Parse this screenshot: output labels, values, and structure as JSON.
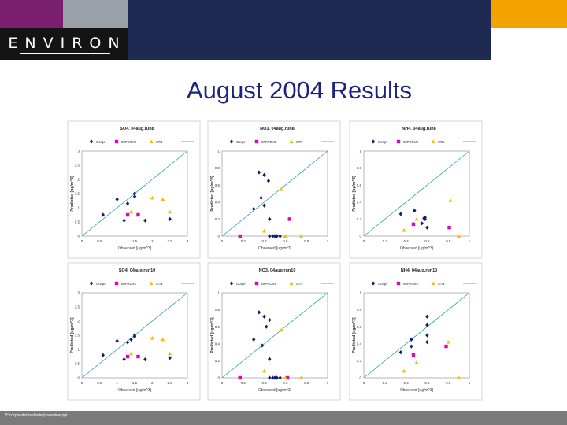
{
  "header": {
    "logo_text": "ENVIRON"
  },
  "slide": {
    "title": "August 2004 Results"
  },
  "footer": {
    "path": "V:\\corporate\\marketing\\overview.ppt"
  },
  "colors": {
    "series": [
      "#1a1a6e",
      "#e000c8",
      "#f0c000"
    ],
    "line": "#2aa198"
  },
  "chart_data": [
    {
      "type": "scatter",
      "title": "SO4.  04aug.run8",
      "xlabel": "Observed [ug/m^3]",
      "ylabel": "Predicted [ug/m^3]",
      "xlim": [
        0,
        3
      ],
      "ylim": [
        0,
        3
      ],
      "xticks": [
        "0",
        "0.5",
        "1",
        "1.5",
        "2",
        "2.5",
        "3"
      ],
      "yticks": [
        "0",
        "0.5",
        "1",
        "1.5",
        "2",
        "2.5",
        "3"
      ],
      "legend": [
        "Gorge",
        "IMPROVE",
        "STN"
      ],
      "series": [
        {
          "name": "Gorge",
          "marker": "diamond",
          "points": [
            [
              0.6,
              0.75
            ],
            [
              1.0,
              1.3
            ],
            [
              1.2,
              0.55
            ],
            [
              1.3,
              1.15
            ],
            [
              1.5,
              1.4
            ],
            [
              1.5,
              1.5
            ],
            [
              1.8,
              0.55
            ],
            [
              2.5,
              0.6
            ]
          ]
        },
        {
          "name": "IMPROVE",
          "marker": "square",
          "points": [
            [
              1.3,
              0.75
            ],
            [
              1.6,
              0.75
            ]
          ]
        },
        {
          "name": "STN",
          "marker": "triangle",
          "points": [
            [
              1.4,
              0.85
            ],
            [
              2.0,
              1.35
            ],
            [
              2.3,
              1.3
            ],
            [
              2.5,
              0.85
            ]
          ]
        }
      ]
    },
    {
      "type": "scatter",
      "title": "NO3.  04aug.run8",
      "xlabel": "Observed [ug/m^3]",
      "ylabel": "Predicted [ug/m^3]",
      "xlim": [
        0,
        1
      ],
      "ylim": [
        0,
        1
      ],
      "xticks": [
        "0",
        "0.2",
        "0.4",
        "0.6",
        "0.8",
        "1"
      ],
      "yticks": [
        "0",
        "0.2",
        "0.4",
        "0.6",
        "0.8",
        "1"
      ],
      "legend": [
        "Gorge",
        "IMPROVE",
        "STN"
      ],
      "series": [
        {
          "name": "Gorge",
          "marker": "diamond",
          "points": [
            [
              0.3,
              0.32
            ],
            [
              0.35,
              0.75
            ],
            [
              0.4,
              0.72
            ],
            [
              0.37,
              0.45
            ],
            [
              0.4,
              0.36
            ],
            [
              0.44,
              0.65
            ],
            [
              0.45,
              0.2
            ],
            [
              0.45,
              0.0
            ],
            [
              0.48,
              0.0
            ],
            [
              0.5,
              0.0
            ],
            [
              0.52,
              0.0
            ],
            [
              0.55,
              0.0
            ]
          ]
        },
        {
          "name": "IMPROVE",
          "marker": "square",
          "points": [
            [
              0.17,
              0.0
            ],
            [
              0.64,
              0.2
            ]
          ]
        },
        {
          "name": "STN",
          "marker": "triangle",
          "points": [
            [
              0.4,
              0.06
            ],
            [
              0.56,
              0.55
            ],
            [
              0.6,
              0.0
            ],
            [
              0.75,
              0.0
            ]
          ]
        }
      ]
    },
    {
      "type": "scatter",
      "title": "NH4.  04aug.run8",
      "xlabel": "Observed [ug/m^3]",
      "ylabel": "Predicted [ug/m^3]",
      "xlim": [
        0,
        1
      ],
      "ylim": [
        0,
        1
      ],
      "xticks": [
        "0",
        "0.2",
        "0.4",
        "0.6",
        "0.8",
        "1"
      ],
      "yticks": [
        "0",
        "0.2",
        "0.4",
        "0.6",
        "0.8",
        "1"
      ],
      "legend": [
        "Gorge",
        "IMPROVE",
        "STN"
      ],
      "series": [
        {
          "name": "Gorge",
          "marker": "diamond",
          "points": [
            [
              0.35,
              0.26
            ],
            [
              0.48,
              0.3
            ],
            [
              0.57,
              0.21
            ],
            [
              0.58,
              0.2
            ],
            [
              0.58,
              0.22
            ],
            [
              0.55,
              0.15
            ],
            [
              0.6,
              0.1
            ]
          ]
        },
        {
          "name": "IMPROVE",
          "marker": "square",
          "points": [
            [
              0.47,
              0.14
            ],
            [
              0.81,
              0.1
            ]
          ]
        },
        {
          "name": "STN",
          "marker": "triangle",
          "points": [
            [
              0.38,
              0.07
            ],
            [
              0.5,
              0.2
            ],
            [
              0.82,
              0.42
            ],
            [
              0.9,
              0.0
            ]
          ]
        }
      ]
    },
    {
      "type": "scatter",
      "title": "SO4.  04aug.run10",
      "xlabel": "Observed [ug/m^3]",
      "ylabel": "Predicted [ug/m^3]",
      "xlim": [
        0,
        3
      ],
      "ylim": [
        0,
        3
      ],
      "xticks": [
        "0",
        "0.5",
        "1",
        "1.5",
        "2",
        "2.5",
        "3"
      ],
      "yticks": [
        "0",
        "0.5",
        "1",
        "1.5",
        "2",
        "2.5",
        "3"
      ],
      "legend": [
        "Gorge",
        "IMPROVE",
        "STN"
      ],
      "series": [
        {
          "name": "Gorge",
          "marker": "diamond",
          "points": [
            [
              0.6,
              0.8
            ],
            [
              1.0,
              1.3
            ],
            [
              1.2,
              0.65
            ],
            [
              1.3,
              1.25
            ],
            [
              1.4,
              1.35
            ],
            [
              1.5,
              1.45
            ],
            [
              1.5,
              1.5
            ],
            [
              1.8,
              0.65
            ],
            [
              2.5,
              0.7
            ]
          ]
        },
        {
          "name": "IMPROVE",
          "marker": "square",
          "points": [
            [
              1.3,
              0.75
            ],
            [
              1.6,
              0.75
            ]
          ]
        },
        {
          "name": "STN",
          "marker": "triangle",
          "points": [
            [
              1.4,
              0.85
            ],
            [
              2.0,
              1.4
            ],
            [
              2.3,
              1.35
            ],
            [
              2.5,
              0.85
            ]
          ]
        }
      ]
    },
    {
      "type": "scatter",
      "title": "NO3.  04aug.run10",
      "xlabel": "Observed [ug/m^3]",
      "ylabel": "Predicted [ug/m^3]",
      "xlim": [
        0,
        1
      ],
      "ylim": [
        0,
        1
      ],
      "xticks": [
        "0",
        "0.2",
        "0.4",
        "0.6",
        "0.8",
        "1"
      ],
      "yticks": [
        "0",
        "0.2",
        "0.4",
        "0.6",
        "0.8",
        "1"
      ],
      "legend": [
        "Gorge",
        "IMPROVE",
        "STN"
      ],
      "series": [
        {
          "name": "Gorge",
          "marker": "diamond",
          "points": [
            [
              0.3,
              0.45
            ],
            [
              0.35,
              0.77
            ],
            [
              0.4,
              0.72
            ],
            [
              0.38,
              0.38
            ],
            [
              0.42,
              0.6
            ],
            [
              0.45,
              0.68
            ],
            [
              0.45,
              0.22
            ],
            [
              0.45,
              0.0
            ],
            [
              0.48,
              0.0
            ],
            [
              0.5,
              0.0
            ],
            [
              0.52,
              0.0
            ],
            [
              0.55,
              0.0
            ]
          ]
        },
        {
          "name": "IMPROVE",
          "marker": "square",
          "points": [
            [
              0.17,
              0.0
            ],
            [
              0.62,
              0.0
            ]
          ]
        },
        {
          "name": "STN",
          "marker": "triangle",
          "points": [
            [
              0.4,
              0.08
            ],
            [
              0.56,
              0.56
            ],
            [
              0.6,
              0.0
            ],
            [
              0.75,
              0.0
            ]
          ]
        }
      ]
    },
    {
      "type": "scatter",
      "title": "NH4.  04aug.run10",
      "xlabel": "Observed [ug/m^3]",
      "ylabel": "Predicted [ug/m^3]",
      "xlim": [
        0,
        1
      ],
      "ylim": [
        0,
        1
      ],
      "xticks": [
        "0",
        "0.2",
        "0.4",
        "0.6",
        "0.8",
        "1"
      ],
      "yticks": [
        "0",
        "0.2",
        "0.4",
        "0.6",
        "0.8",
        "1"
      ],
      "legend": [
        "Gorge",
        "IMPROVE",
        "STN"
      ],
      "series": [
        {
          "name": "Gorge",
          "marker": "diamond",
          "points": [
            [
              0.35,
              0.3
            ],
            [
              0.45,
              0.45
            ],
            [
              0.45,
              0.37
            ],
            [
              0.6,
              0.42
            ],
            [
              0.6,
              0.5
            ],
            [
              0.6,
              0.62
            ],
            [
              0.6,
              0.72
            ]
          ]
        },
        {
          "name": "IMPROVE",
          "marker": "square",
          "points": [
            [
              0.47,
              0.27
            ],
            [
              0.78,
              0.37
            ]
          ]
        },
        {
          "name": "STN",
          "marker": "triangle",
          "points": [
            [
              0.38,
              0.08
            ],
            [
              0.5,
              0.18
            ],
            [
              0.8,
              0.42
            ],
            [
              0.9,
              0.0
            ]
          ]
        }
      ]
    }
  ]
}
